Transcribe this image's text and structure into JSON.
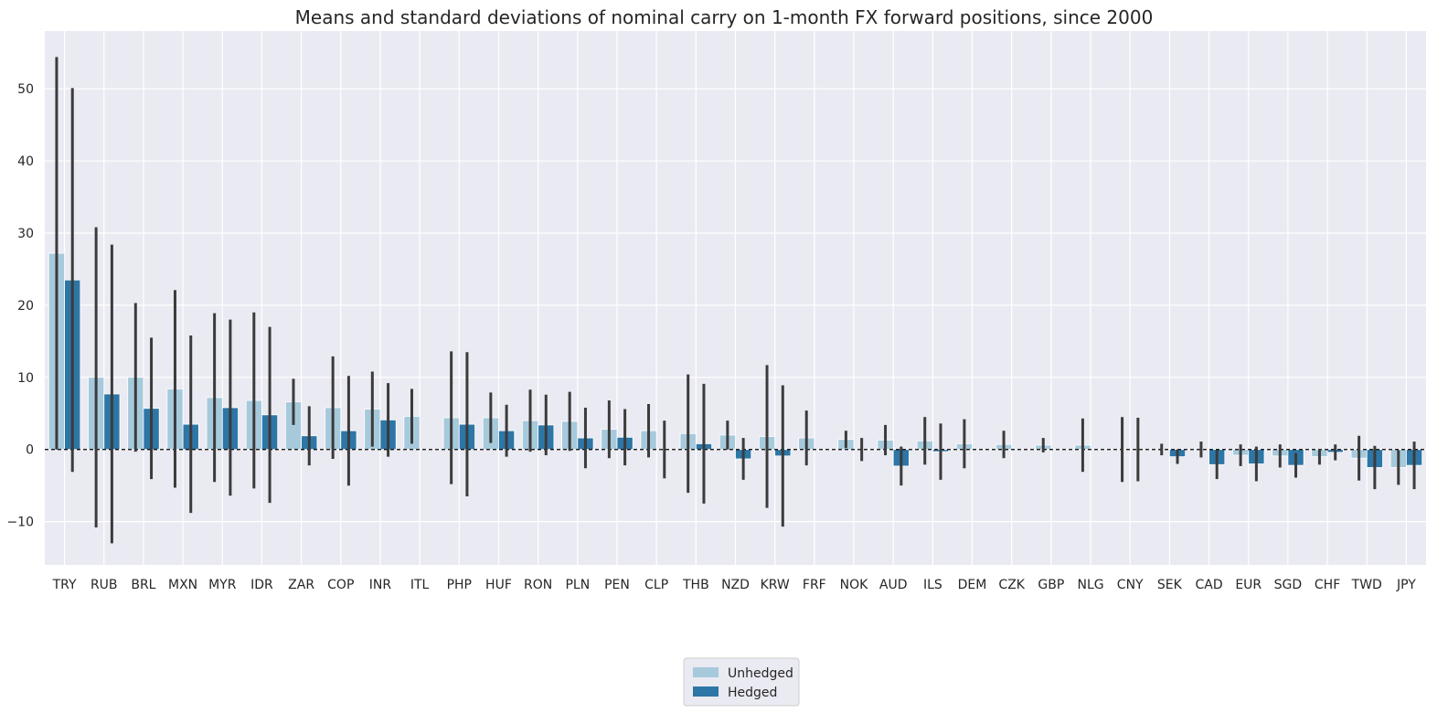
{
  "chart_data": {
    "type": "bar",
    "title": "Means and standard deviations of nominal carry on 1-month FX forward positions, since 2000",
    "xlabel": "",
    "ylabel": "",
    "ylim": [
      -16,
      58
    ],
    "yticks": [
      -10,
      0,
      10,
      20,
      30,
      40,
      50
    ],
    "grid": true,
    "legend_position": "bottom-center",
    "colors": {
      "background": "#eaeaf2",
      "grid": "#ffffff",
      "error": "#3b3b3b",
      "zero_line": "#000000"
    },
    "categories": [
      "TRY",
      "RUB",
      "BRL",
      "MXN",
      "MYR",
      "IDR",
      "ZAR",
      "COP",
      "INR",
      "ITL",
      "PHP",
      "HUF",
      "RON",
      "PLN",
      "PEN",
      "CLP",
      "THB",
      "NZD",
      "KRW",
      "FRF",
      "NOK",
      "AUD",
      "ILS",
      "DEM",
      "CZK",
      "GBP",
      "NLG",
      "CNY",
      "SEK",
      "CAD",
      "EUR",
      "SGD",
      "CHF",
      "TWD",
      "JPY"
    ],
    "series": [
      {
        "name": "Unhedged",
        "color": "#a6cadc",
        "values": [
          27.2,
          10.0,
          10.0,
          8.4,
          7.2,
          6.8,
          6.6,
          5.8,
          5.6,
          4.6,
          4.4,
          4.4,
          4.0,
          3.9,
          2.8,
          2.6,
          2.2,
          2.0,
          1.8,
          1.6,
          1.4,
          1.3,
          1.2,
          0.8,
          0.7,
          0.6,
          0.6,
          0.0,
          0.0,
          0.0,
          -0.8,
          -0.9,
          -1.0,
          -1.2,
          -2.5
        ],
        "std": [
          27.2,
          20.8,
          10.3,
          13.7,
          11.7,
          12.2,
          3.2,
          7.1,
          5.2,
          3.8,
          9.2,
          3.5,
          4.3,
          4.1,
          4.0,
          3.7,
          8.2,
          2.0,
          9.9,
          3.8,
          1.2,
          2.1,
          3.3,
          3.4,
          1.9,
          1.0,
          3.7,
          4.5,
          0.8,
          1.1,
          1.5,
          1.6,
          1.1,
          3.1,
          2.4
        ]
      },
      {
        "name": "Hedged",
        "color": "#2d76a6",
        "values": [
          23.5,
          7.7,
          5.7,
          3.5,
          5.8,
          4.8,
          1.9,
          2.6,
          4.1,
          0.0,
          3.5,
          2.6,
          3.4,
          1.6,
          1.7,
          0.0,
          0.8,
          -1.3,
          -0.9,
          0.0,
          0.0,
          -2.3,
          -0.3,
          0.0,
          0.0,
          0.0,
          0.0,
          0.0,
          -1.0,
          -2.1,
          -2.0,
          -2.2,
          -0.4,
          -2.5,
          -2.2
        ],
        "std": [
          26.6,
          20.7,
          9.8,
          12.3,
          12.2,
          12.2,
          4.1,
          7.6,
          5.1,
          0.0,
          10.0,
          3.6,
          4.2,
          4.2,
          3.9,
          4.0,
          8.3,
          2.9,
          9.8,
          0.0,
          1.6,
          2.7,
          3.9,
          0.0,
          0.0,
          0.0,
          0.0,
          4.4,
          1.0,
          2.0,
          2.4,
          1.7,
          1.1,
          3.0,
          3.3
        ]
      }
    ]
  }
}
